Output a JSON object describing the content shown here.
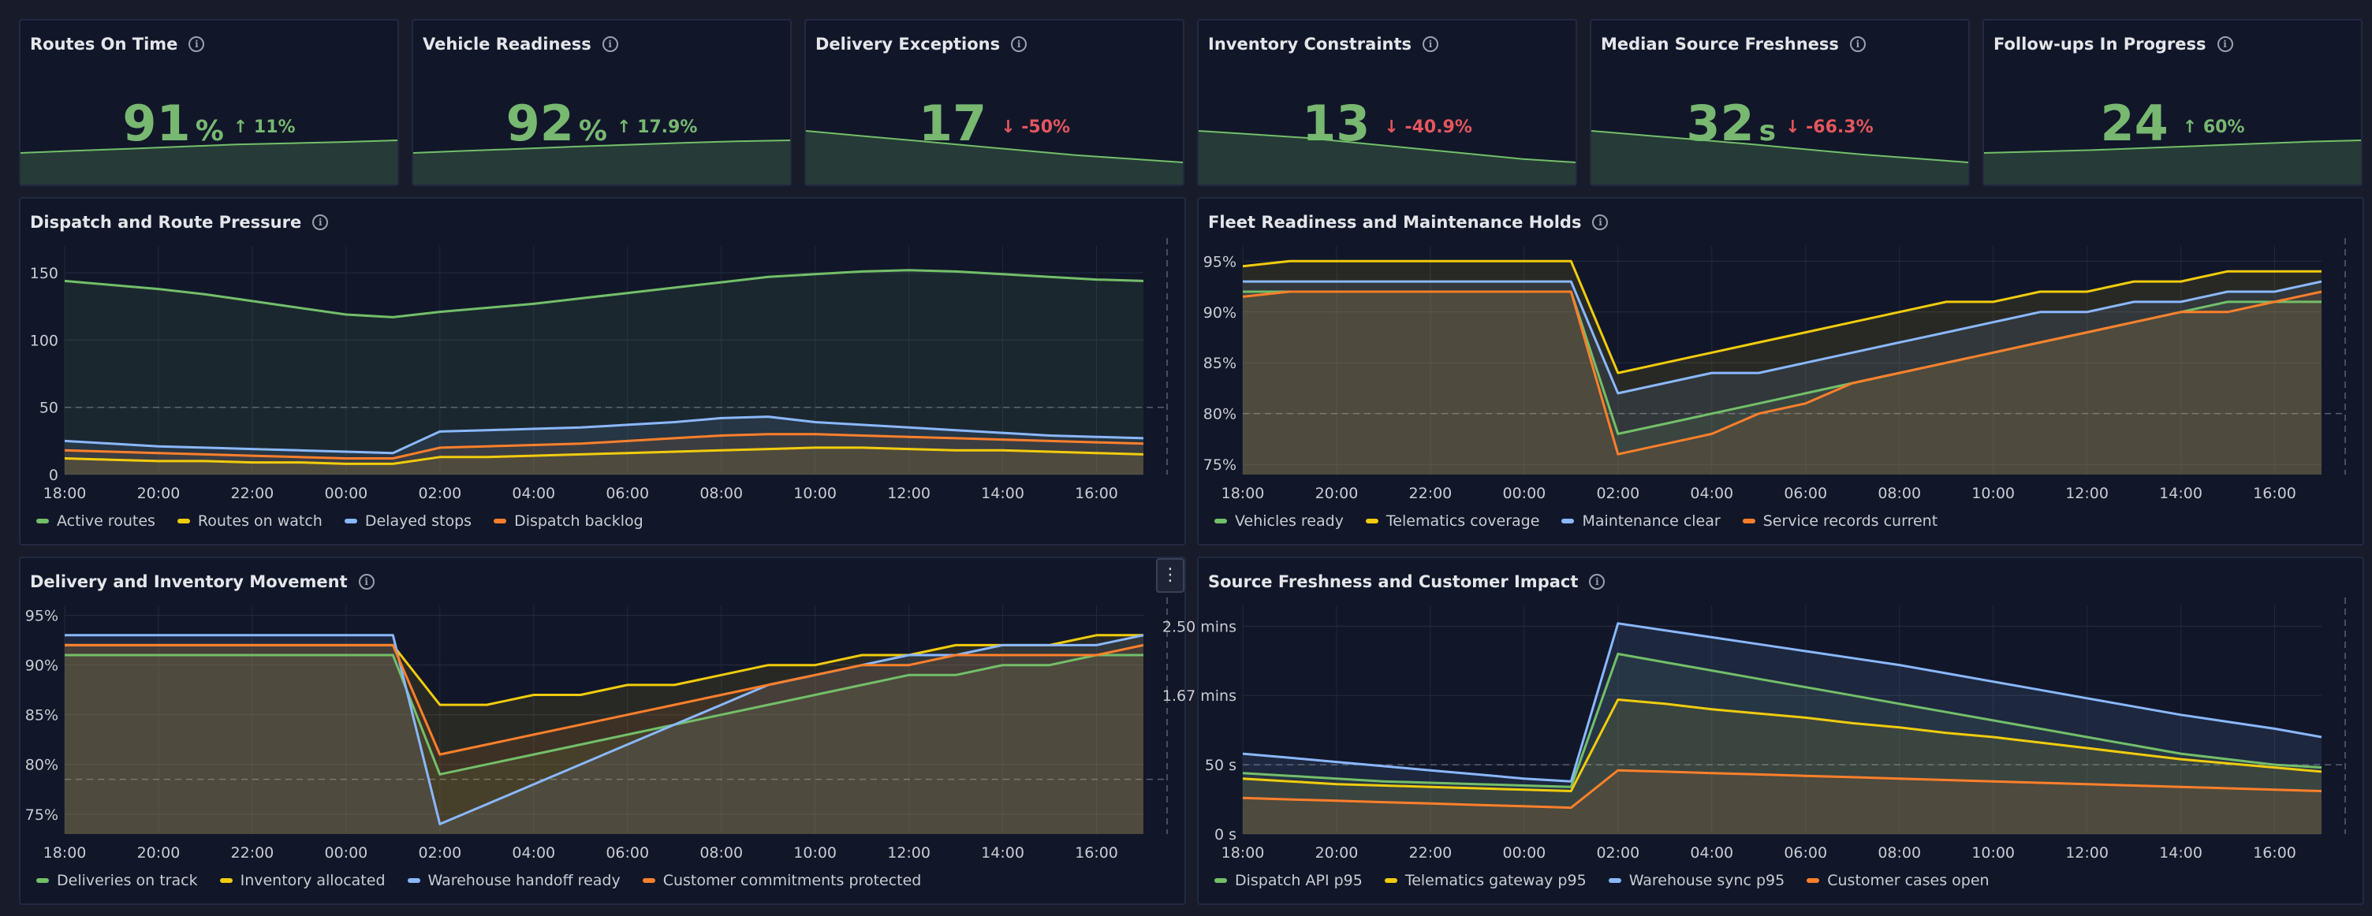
{
  "stats": [
    {
      "title": "Routes On Time",
      "value": "91",
      "unit": "%",
      "delta": "11%",
      "dir": "up",
      "trend": [
        88,
        88.5,
        89,
        89.5,
        90,
        90.3,
        90.6,
        91
      ]
    },
    {
      "title": "Vehicle Readiness",
      "value": "92",
      "unit": "%",
      "delta": "17.9%",
      "dir": "up",
      "trend": [
        88,
        88.7,
        89.3,
        90,
        90.6,
        91.2,
        91.7,
        92
      ]
    },
    {
      "title": "Delivery Exceptions",
      "value": "17",
      "unit": "",
      "delta": "-50%",
      "dir": "down",
      "trend": [
        30,
        28,
        26,
        24,
        22,
        20,
        18.5,
        17
      ]
    },
    {
      "title": "Inventory Constraints",
      "value": "13",
      "unit": "",
      "delta": "-40.9%",
      "dir": "down",
      "trend": [
        22,
        21,
        20,
        18.5,
        17,
        15.5,
        14,
        13
      ]
    },
    {
      "title": "Median Source Freshness",
      "value": "32",
      "unit": "s",
      "delta": "-66.3%",
      "dir": "down",
      "trend": [
        95,
        86,
        77,
        68,
        58,
        48,
        40,
        32
      ]
    },
    {
      "title": "Follow-ups In Progress",
      "value": "24",
      "unit": "",
      "delta": "60%",
      "dir": "up",
      "trend": [
        15,
        16,
        17,
        18.5,
        20,
        21.5,
        23,
        24
      ]
    }
  ],
  "chart_data": [
    {
      "type": "area",
      "title": "Dispatch and Route Pressure",
      "x": [
        "18:00",
        "19:00",
        "20:00",
        "21:00",
        "22:00",
        "23:00",
        "00:00",
        "01:00",
        "02:00",
        "03:00",
        "04:00",
        "05:00",
        "06:00",
        "07:00",
        "08:00",
        "09:00",
        "10:00",
        "11:00",
        "12:00",
        "13:00",
        "14:00",
        "15:00",
        "16:00",
        "17:00"
      ],
      "xticks": [
        "18:00",
        "20:00",
        "22:00",
        "00:00",
        "02:00",
        "04:00",
        "06:00",
        "08:00",
        "10:00",
        "12:00",
        "14:00",
        "16:00"
      ],
      "yticks": [
        0,
        50,
        100,
        150
      ],
      "ytick_labels": [
        "0",
        "50",
        "100",
        "150"
      ],
      "ylim": [
        0,
        170
      ],
      "threshold": 50,
      "series": [
        {
          "name": "Active routes",
          "color": "#73bf69",
          "values": [
            144,
            141,
            138,
            134,
            129,
            124,
            119,
            117,
            121,
            124,
            127,
            131,
            135,
            139,
            143,
            147,
            149,
            151,
            152,
            151,
            149,
            147,
            145,
            144
          ]
        },
        {
          "name": "Routes on watch",
          "color": "#f2cc0c",
          "values": [
            12,
            11,
            10,
            10,
            9,
            9,
            8,
            8,
            13,
            13,
            14,
            15,
            16,
            17,
            18,
            19,
            20,
            20,
            19,
            18,
            18,
            17,
            16,
            15
          ]
        },
        {
          "name": "Delayed stops",
          "color": "#8ab8ff",
          "values": [
            25,
            23,
            21,
            20,
            19,
            18,
            17,
            16,
            32,
            33,
            34,
            35,
            37,
            39,
            42,
            43,
            39,
            37,
            35,
            33,
            31,
            29,
            28,
            27
          ]
        },
        {
          "name": "Dispatch backlog",
          "color": "#ff7f2a",
          "values": [
            18,
            17,
            16,
            15,
            14,
            13,
            12,
            12,
            20,
            21,
            22,
            23,
            25,
            27,
            29,
            30,
            30,
            29,
            28,
            27,
            26,
            25,
            24,
            23
          ]
        }
      ]
    },
    {
      "type": "area",
      "title": "Fleet Readiness and Maintenance Holds",
      "x": [
        "18:00",
        "19:00",
        "20:00",
        "21:00",
        "22:00",
        "23:00",
        "00:00",
        "01:00",
        "02:00",
        "03:00",
        "04:00",
        "05:00",
        "06:00",
        "07:00",
        "08:00",
        "09:00",
        "10:00",
        "11:00",
        "12:00",
        "13:00",
        "14:00",
        "15:00",
        "16:00",
        "17:00"
      ],
      "xticks": [
        "18:00",
        "20:00",
        "22:00",
        "00:00",
        "02:00",
        "04:00",
        "06:00",
        "08:00",
        "10:00",
        "12:00",
        "14:00",
        "16:00"
      ],
      "yticks": [
        75,
        80,
        85,
        90,
        95
      ],
      "ytick_labels": [
        "75%",
        "80%",
        "85%",
        "90%",
        "95%"
      ],
      "ylim": [
        74,
        96.5
      ],
      "threshold": 80,
      "series": [
        {
          "name": "Vehicles ready",
          "color": "#73bf69",
          "values": [
            92,
            92,
            92,
            92,
            92,
            92,
            92,
            92,
            78,
            79,
            80,
            81,
            82,
            83,
            84,
            85,
            86,
            87,
            88,
            89,
            90,
            91,
            91,
            91
          ]
        },
        {
          "name": "Telematics coverage",
          "color": "#f2cc0c",
          "values": [
            94.5,
            95,
            95,
            95,
            95,
            95,
            95,
            95,
            84,
            85,
            86,
            87,
            88,
            89,
            90,
            91,
            91,
            92,
            92,
            93,
            93,
            94,
            94,
            94
          ]
        },
        {
          "name": "Maintenance clear",
          "color": "#8ab8ff",
          "values": [
            93,
            93,
            93,
            93,
            93,
            93,
            93,
            93,
            82,
            83,
            84,
            84,
            85,
            86,
            87,
            88,
            89,
            90,
            90,
            91,
            91,
            92,
            92,
            93
          ]
        },
        {
          "name": "Service records current",
          "color": "#ff7f2a",
          "values": [
            91.5,
            92,
            92,
            92,
            92,
            92,
            92,
            92,
            76,
            77,
            78,
            80,
            81,
            83,
            84,
            85,
            86,
            87,
            88,
            89,
            90,
            90,
            91,
            92
          ]
        }
      ]
    },
    {
      "type": "area",
      "title": "Delivery and Inventory Movement",
      "x": [
        "18:00",
        "19:00",
        "20:00",
        "21:00",
        "22:00",
        "23:00",
        "00:00",
        "01:00",
        "02:00",
        "03:00",
        "04:00",
        "05:00",
        "06:00",
        "07:00",
        "08:00",
        "09:00",
        "10:00",
        "11:00",
        "12:00",
        "13:00",
        "14:00",
        "15:00",
        "16:00",
        "17:00"
      ],
      "xticks": [
        "18:00",
        "20:00",
        "22:00",
        "00:00",
        "02:00",
        "04:00",
        "06:00",
        "08:00",
        "10:00",
        "12:00",
        "14:00",
        "16:00"
      ],
      "yticks": [
        75,
        80,
        85,
        90,
        95
      ],
      "ytick_labels": [
        "75%",
        "80%",
        "85%",
        "90%",
        "95%"
      ],
      "ylim": [
        73,
        96
      ],
      "threshold": 78.5,
      "series": [
        {
          "name": "Deliveries on track",
          "color": "#73bf69",
          "values": [
            91,
            91,
            91,
            91,
            91,
            91,
            91,
            91,
            79,
            80,
            81,
            82,
            83,
            84,
            85,
            86,
            87,
            88,
            89,
            89,
            90,
            90,
            91,
            91
          ]
        },
        {
          "name": "Inventory allocated",
          "color": "#f2cc0c",
          "values": [
            92,
            92,
            92,
            92,
            92,
            92,
            92,
            92,
            86,
            86,
            87,
            87,
            88,
            88,
            89,
            90,
            90,
            91,
            91,
            92,
            92,
            92,
            93,
            93
          ]
        },
        {
          "name": "Warehouse handoff ready",
          "color": "#8ab8ff",
          "values": [
            93,
            93,
            93,
            93,
            93,
            93,
            93,
            93,
            74,
            76,
            78,
            80,
            82,
            84,
            86,
            88,
            89,
            90,
            91,
            91,
            92,
            92,
            92,
            93
          ]
        },
        {
          "name": "Customer commitments protected",
          "color": "#ff7f2a",
          "values": [
            92,
            92,
            92,
            92,
            92,
            92,
            92,
            92,
            81,
            82,
            83,
            84,
            85,
            86,
            87,
            88,
            89,
            90,
            90,
            91,
            91,
            91,
            91,
            92
          ]
        }
      ]
    },
    {
      "type": "area",
      "title": "Source Freshness and Customer Impact",
      "x": [
        "18:00",
        "19:00",
        "20:00",
        "21:00",
        "22:00",
        "23:00",
        "00:00",
        "01:00",
        "02:00",
        "03:00",
        "04:00",
        "05:00",
        "06:00",
        "07:00",
        "08:00",
        "09:00",
        "10:00",
        "11:00",
        "12:00",
        "13:00",
        "14:00",
        "15:00",
        "16:00",
        "17:00"
      ],
      "xticks": [
        "18:00",
        "20:00",
        "22:00",
        "00:00",
        "02:00",
        "04:00",
        "06:00",
        "08:00",
        "10:00",
        "12:00",
        "14:00",
        "16:00"
      ],
      "yticks": [
        0,
        50,
        100,
        150
      ],
      "ytick_labels": [
        "0 s",
        "50 s",
        "1.67 mins",
        "2.50 mins"
      ],
      "ylim": [
        0,
        165
      ],
      "threshold": 50,
      "series": [
        {
          "name": "Dispatch API p95",
          "color": "#73bf69",
          "values": [
            44,
            42,
            40,
            38,
            37,
            36,
            35,
            34,
            130,
            124,
            118,
            112,
            106,
            100,
            94,
            88,
            82,
            76,
            70,
            64,
            58,
            54,
            50,
            48
          ]
        },
        {
          "name": "Telematics gateway p95",
          "color": "#f2cc0c",
          "values": [
            40,
            38,
            36,
            35,
            34,
            33,
            32,
            31,
            97,
            94,
            90,
            87,
            84,
            80,
            77,
            73,
            70,
            66,
            62,
            58,
            54,
            51,
            48,
            45
          ]
        },
        {
          "name": "Warehouse sync p95",
          "color": "#8ab8ff",
          "values": [
            58,
            55,
            52,
            49,
            46,
            43,
            40,
            38,
            152,
            147,
            142,
            137,
            132,
            127,
            122,
            116,
            110,
            104,
            98,
            92,
            86,
            81,
            76,
            70
          ]
        },
        {
          "name": "Customer cases open",
          "color": "#ff7f2a",
          "values": [
            26,
            25,
            24,
            23,
            22,
            21,
            20,
            19,
            46,
            45,
            44,
            43,
            42,
            41,
            40,
            39,
            38,
            37,
            36,
            35,
            34,
            33,
            32,
            31
          ]
        }
      ]
    }
  ],
  "menu_icon": "⋮"
}
